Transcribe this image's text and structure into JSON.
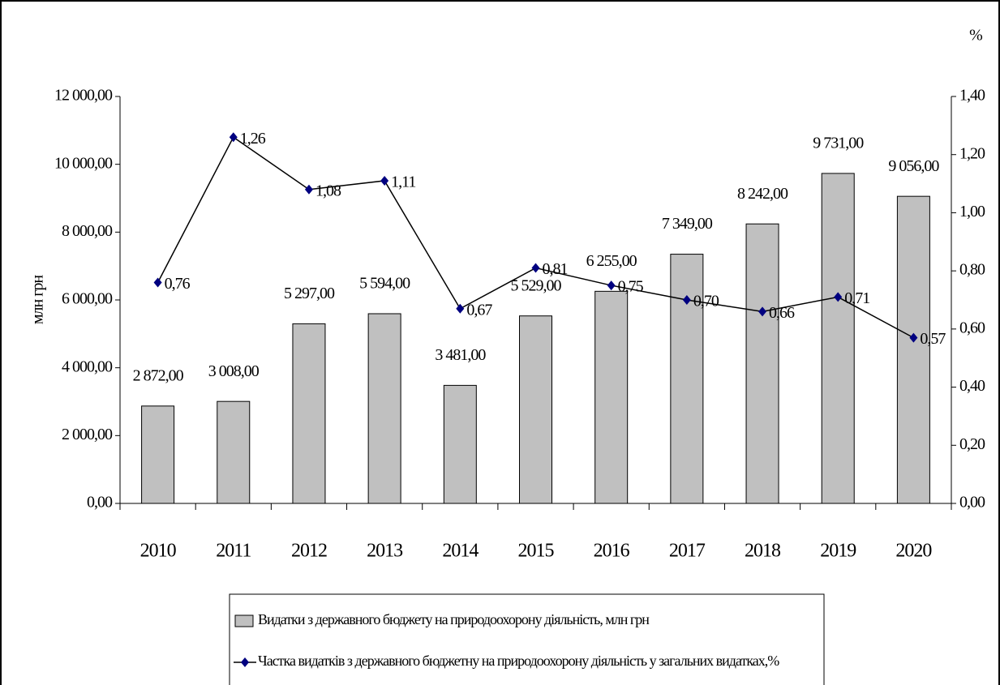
{
  "chart_data": {
    "type": "bar",
    "categories": [
      "2010",
      "2011",
      "2012",
      "2013",
      "2014",
      "2015",
      "2016",
      "2017",
      "2018",
      "2019",
      "2020"
    ],
    "series": [
      {
        "name": "Видатки з державного бюджету на природоохорону діяльність, млн грн",
        "type": "bar",
        "color": "#c0c0c0",
        "values": [
          2872,
          3008,
          5297,
          5594,
          3481,
          5529,
          6255,
          7349,
          8242,
          9731,
          9056
        ],
        "value_labels": [
          "2 872,00",
          "3 008,00",
          "5 297,00",
          "5 594,00",
          "3 481,00",
          "5 529,00",
          "6 255,00",
          "7 349,00",
          "8 242,00",
          "9 731,00",
          "9 056,00"
        ]
      },
      {
        "name": "Частка видатків з державного бюджетну на природоохорону діяльність у загальних видатках,%",
        "type": "line",
        "axis": "y2",
        "color": "#000080",
        "values": [
          0.76,
          1.26,
          1.08,
          1.11,
          0.67,
          0.81,
          0.75,
          0.7,
          0.66,
          0.71,
          0.57
        ],
        "value_labels": [
          "0,76",
          "1,26",
          "1,08",
          "1,11",
          "0,67",
          "0,81",
          "0,75",
          "0,70",
          "0,66",
          "0,71",
          "0,57"
        ]
      }
    ],
    "y_label": "млн грн",
    "y2_label": "%",
    "ylim": [
      0,
      12000
    ],
    "yticks": [
      {
        "value": 0,
        "label": "0,00"
      },
      {
        "value": 2000,
        "label": "2 000,00"
      },
      {
        "value": 4000,
        "label": "4 000,00"
      },
      {
        "value": 6000,
        "label": "6 000,00"
      },
      {
        "value": 8000,
        "label": "8 000,00"
      },
      {
        "value": 10000,
        "label": "10 000,00"
      },
      {
        "value": 12000,
        "label": "12 000,00"
      }
    ],
    "y2lim": [
      0,
      1.4
    ],
    "y2ticks": [
      {
        "value": 0,
        "label": "0,00"
      },
      {
        "value": 0.2,
        "label": "0,20"
      },
      {
        "value": 0.4,
        "label": "0,40"
      },
      {
        "value": 0.6,
        "label": "0,60"
      },
      {
        "value": 0.8,
        "label": "0,80"
      },
      {
        "value": 1.0,
        "label": "1,00"
      },
      {
        "value": 1.2,
        "label": "1,20"
      },
      {
        "value": 1.4,
        "label": "1,40"
      }
    ],
    "legend": "bottom"
  }
}
